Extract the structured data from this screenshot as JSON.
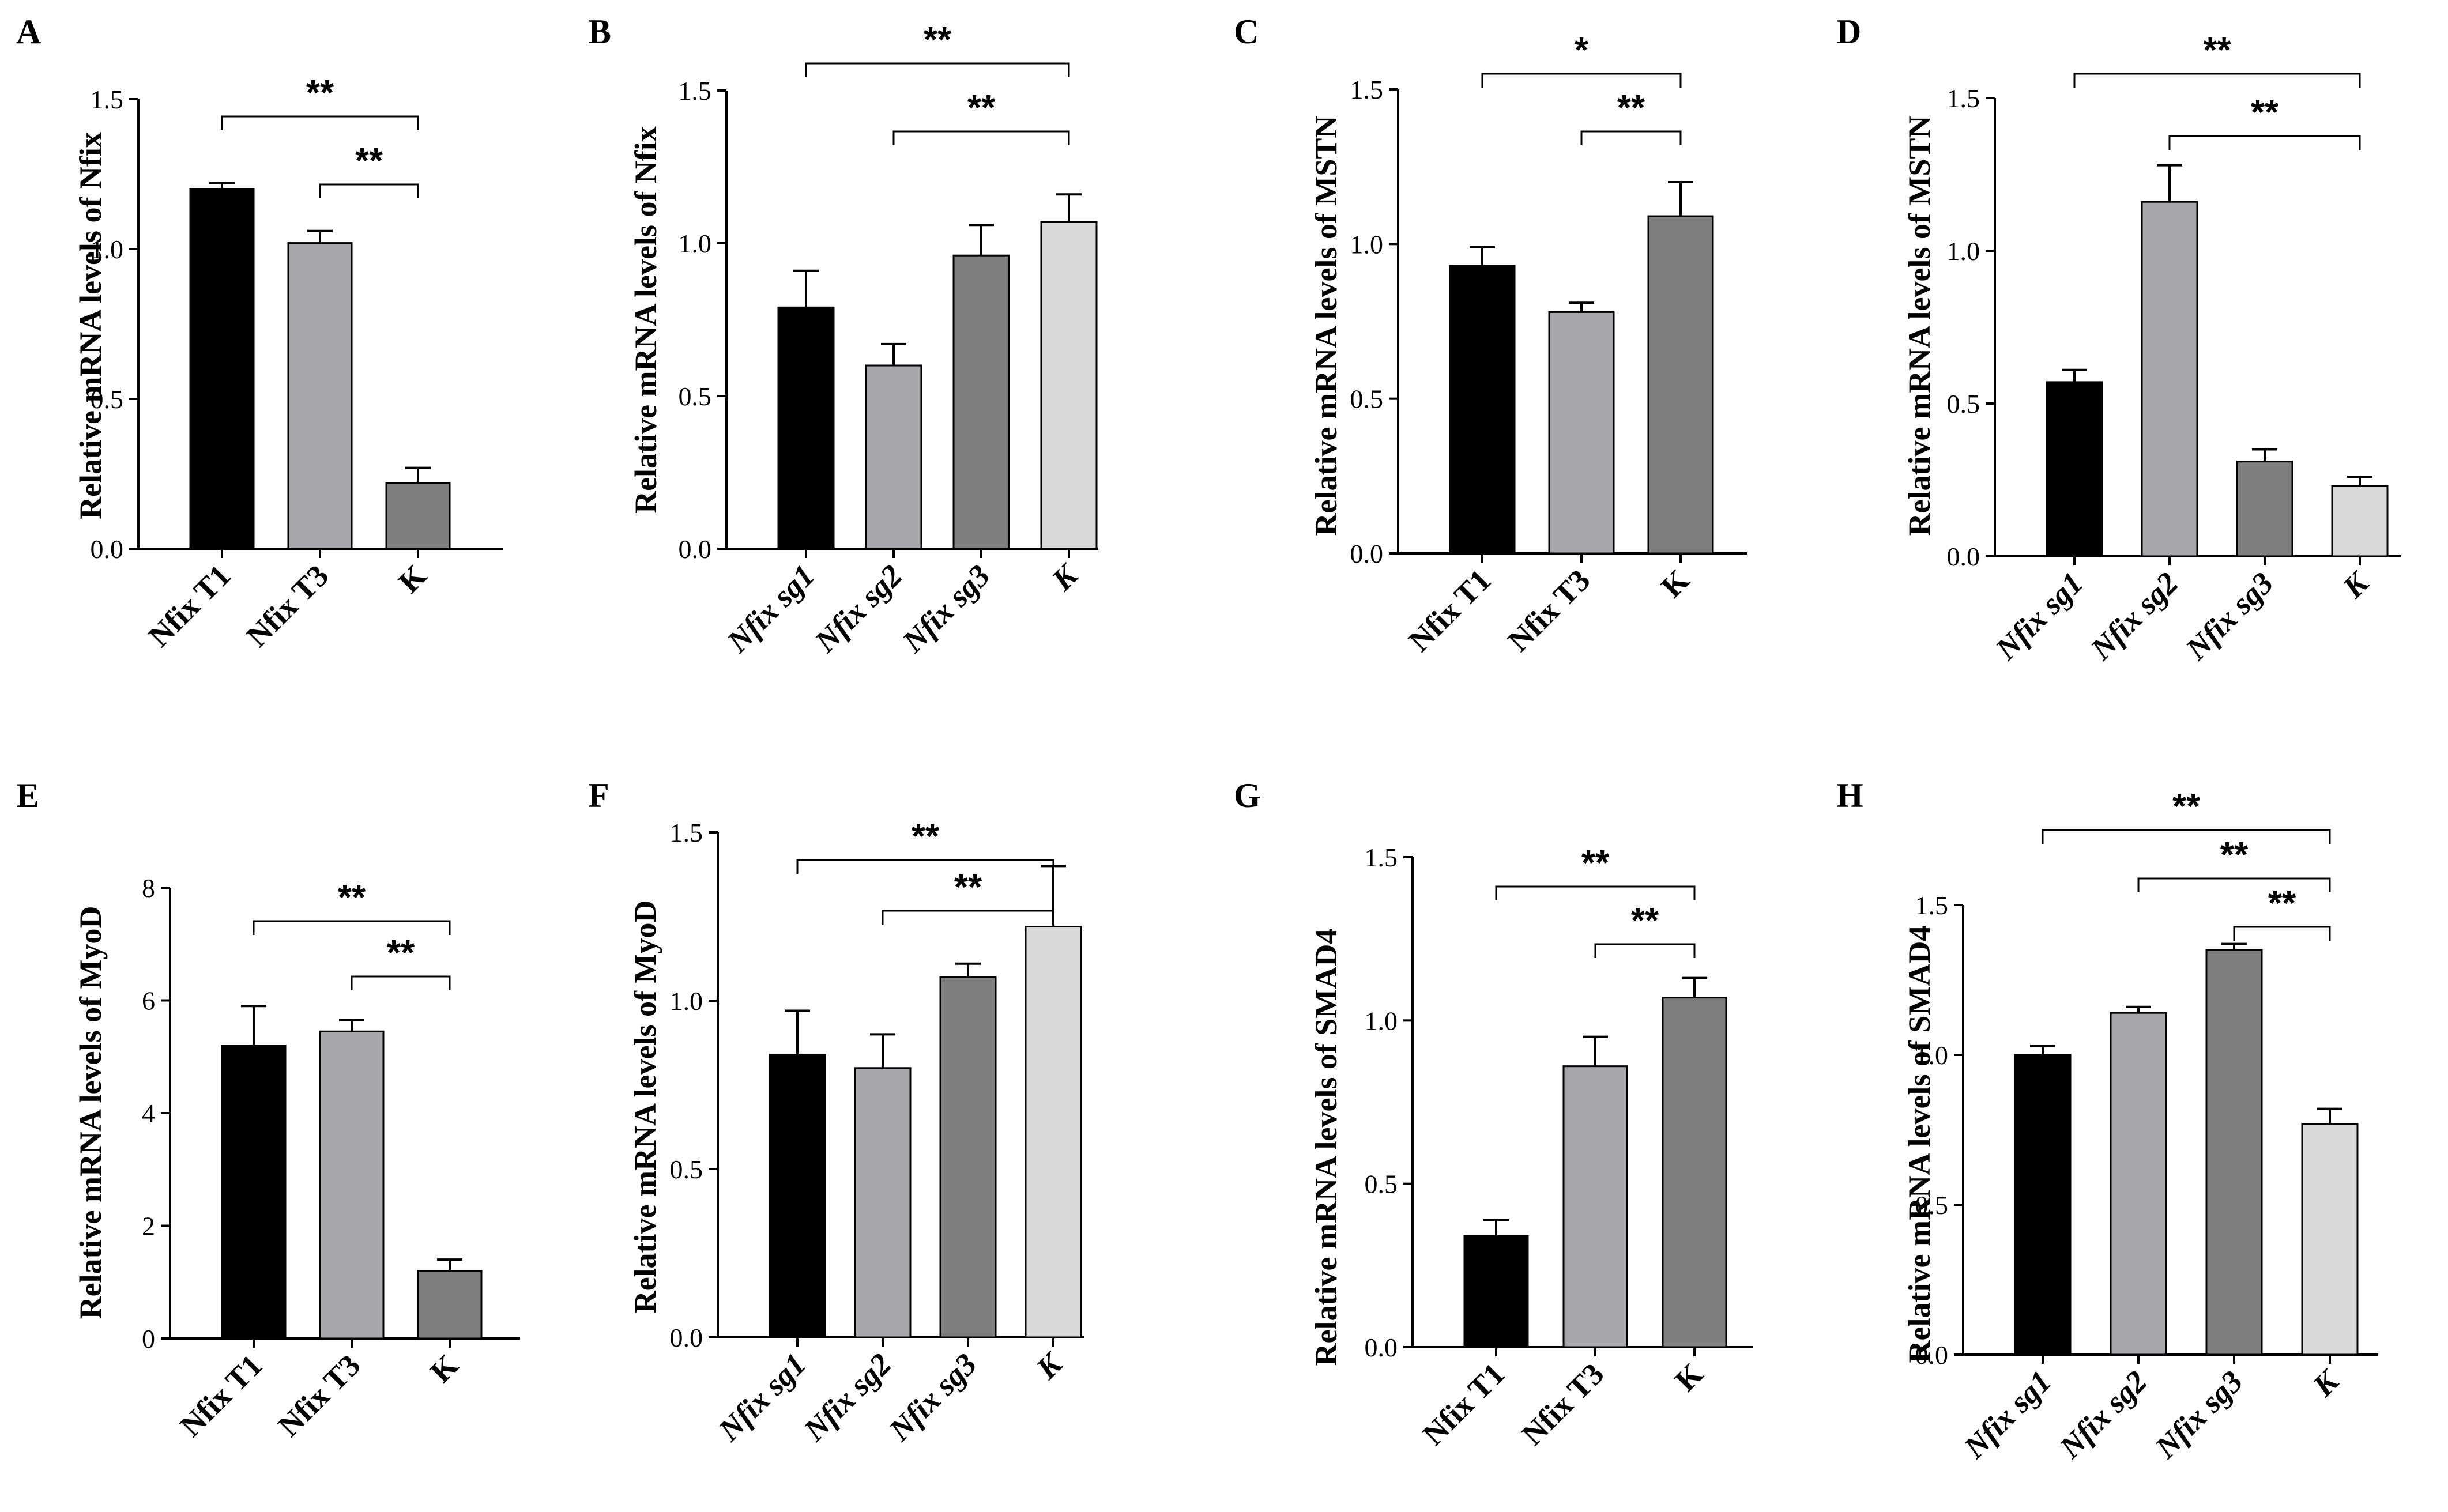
{
  "figure": {
    "panel_count": 8
  },
  "chart_data": [
    {
      "panel": "A",
      "type": "bar",
      "ylabel": "Relative mRNA levels of Nfix",
      "ylim": [
        0,
        1.5
      ],
      "yticks": [
        "0.0",
        "0.5",
        "1.0",
        "1.5"
      ],
      "categories": [
        "Nfix T1",
        "Nfix T3",
        "K"
      ],
      "italic_labels": false,
      "values": [
        1.2,
        1.02,
        0.22
      ],
      "errors": [
        0.02,
        0.04,
        0.05
      ],
      "colors": [
        "#000000",
        "#a6a6ab",
        "#7f7f7f"
      ],
      "significance": [
        {
          "from": 0,
          "to": 2,
          "label": "**"
        },
        {
          "from": 1,
          "to": 2,
          "label": "**"
        }
      ]
    },
    {
      "panel": "B",
      "type": "bar",
      "ylabel": "Relative mRNA levels of Nfix",
      "ylim": [
        0,
        1.5
      ],
      "yticks": [
        "0.0",
        "0.5",
        "1.0",
        "1.5"
      ],
      "categories": [
        "Nfix sg1",
        "Nfix sg2",
        "Nfix sg3",
        "K"
      ],
      "italic_labels": true,
      "values": [
        0.79,
        0.6,
        0.96,
        1.07
      ],
      "errors": [
        0.12,
        0.07,
        0.1,
        0.09
      ],
      "colors": [
        "#000000",
        "#a6a6ab",
        "#7f7f7f",
        "#d9d9d9"
      ],
      "significance": [
        {
          "from": 0,
          "to": 3,
          "label": "**"
        },
        {
          "from": 1,
          "to": 3,
          "label": "**"
        }
      ]
    },
    {
      "panel": "C",
      "type": "bar",
      "ylabel": "Relative mRNA levels of MSTN",
      "ylim": [
        0,
        1.5
      ],
      "yticks": [
        "0.0",
        "0.5",
        "1.0",
        "1.5"
      ],
      "categories": [
        "Nfix T1",
        "Nfix T3",
        "K"
      ],
      "italic_labels": false,
      "values": [
        0.93,
        0.78,
        1.09
      ],
      "errors": [
        0.06,
        0.03,
        0.11
      ],
      "colors": [
        "#000000",
        "#a6a6ab",
        "#7f7f7f"
      ],
      "significance": [
        {
          "from": 0,
          "to": 2,
          "label": "*"
        },
        {
          "from": 1,
          "to": 2,
          "label": "**"
        }
      ]
    },
    {
      "panel": "D",
      "type": "bar",
      "ylabel": "Relative mRNA levels of MSTN",
      "ylim": [
        0,
        1.5
      ],
      "yticks": [
        "0.0",
        "0.5",
        "1.0",
        "1.5"
      ],
      "categories": [
        "Nfix sg1",
        "Nfix sg2",
        "Nfix sg3",
        "K"
      ],
      "italic_labels": true,
      "values": [
        0.57,
        1.16,
        0.31,
        0.23
      ],
      "errors": [
        0.04,
        0.12,
        0.04,
        0.03
      ],
      "colors": [
        "#000000",
        "#a6a6ab",
        "#7f7f7f",
        "#d9d9d9"
      ],
      "significance": [
        {
          "from": 0,
          "to": 3,
          "label": "**"
        },
        {
          "from": 1,
          "to": 3,
          "label": "**"
        }
      ]
    },
    {
      "panel": "E",
      "type": "bar",
      "ylabel": "Relative mRNA levels of MyoD",
      "ylim": [
        0,
        8
      ],
      "yticks": [
        "0",
        "2",
        "4",
        "6",
        "8"
      ],
      "categories": [
        "Nfix T1",
        "Nfix T3",
        "K"
      ],
      "italic_labels": false,
      "values": [
        5.2,
        5.45,
        1.2
      ],
      "errors": [
        0.7,
        0.2,
        0.2
      ],
      "colors": [
        "#000000",
        "#a6a6ab",
        "#7f7f7f"
      ],
      "significance": [
        {
          "from": 0,
          "to": 2,
          "label": "**"
        },
        {
          "from": 1,
          "to": 2,
          "label": "**"
        }
      ]
    },
    {
      "panel": "F",
      "type": "bar",
      "ylabel": "Relative mRNA levels of MyoD",
      "ylim": [
        0,
        1.5
      ],
      "yticks": [
        "0.0",
        "0.5",
        "1.0",
        "1.5"
      ],
      "categories": [
        "Nfix sg1",
        "Nfix sg2",
        "Nfix sg3",
        "K"
      ],
      "italic_labels": true,
      "values": [
        0.84,
        0.8,
        1.07,
        1.22
      ],
      "errors": [
        0.13,
        0.1,
        0.04,
        0.18
      ],
      "colors": [
        "#000000",
        "#a6a6ab",
        "#7f7f7f",
        "#d9d9d9"
      ],
      "significance": [
        {
          "from": 0,
          "to": 3,
          "label": "**"
        },
        {
          "from": 1,
          "to": 3,
          "label": "**"
        }
      ]
    },
    {
      "panel": "G",
      "type": "bar",
      "ylabel": "Relative mRNA levels of SMAD4",
      "ylim": [
        0,
        1.5
      ],
      "yticks": [
        "0.0",
        "0.5",
        "1.0",
        "1.5"
      ],
      "categories": [
        "Nfix T1",
        "Nfix T3",
        "K"
      ],
      "italic_labels": false,
      "values": [
        0.34,
        0.86,
        1.07
      ],
      "errors": [
        0.05,
        0.09,
        0.06
      ],
      "colors": [
        "#000000",
        "#a6a6ab",
        "#7f7f7f"
      ],
      "significance": [
        {
          "from": 0,
          "to": 2,
          "label": "**"
        },
        {
          "from": 1,
          "to": 2,
          "label": "**"
        }
      ]
    },
    {
      "panel": "H",
      "type": "bar",
      "ylabel": "Relative mRNA levels of SMAD4",
      "ylim": [
        0,
        1.5
      ],
      "yticks": [
        "0.0",
        "0.5",
        "1.0",
        "1.5"
      ],
      "categories": [
        "Nfix sg1",
        "Nfix sg2",
        "Nfix sg3",
        "K"
      ],
      "italic_labels": true,
      "values": [
        1.0,
        1.14,
        1.35,
        0.77
      ],
      "errors": [
        0.03,
        0.02,
        0.02,
        0.05
      ],
      "colors": [
        "#000000",
        "#a6a6ab",
        "#7f7f7f",
        "#d9d9d9"
      ],
      "significance": [
        {
          "from": 0,
          "to": 3,
          "label": "**"
        },
        {
          "from": 1,
          "to": 3,
          "label": "**"
        },
        {
          "from": 2,
          "to": 3,
          "label": "**"
        }
      ]
    }
  ]
}
